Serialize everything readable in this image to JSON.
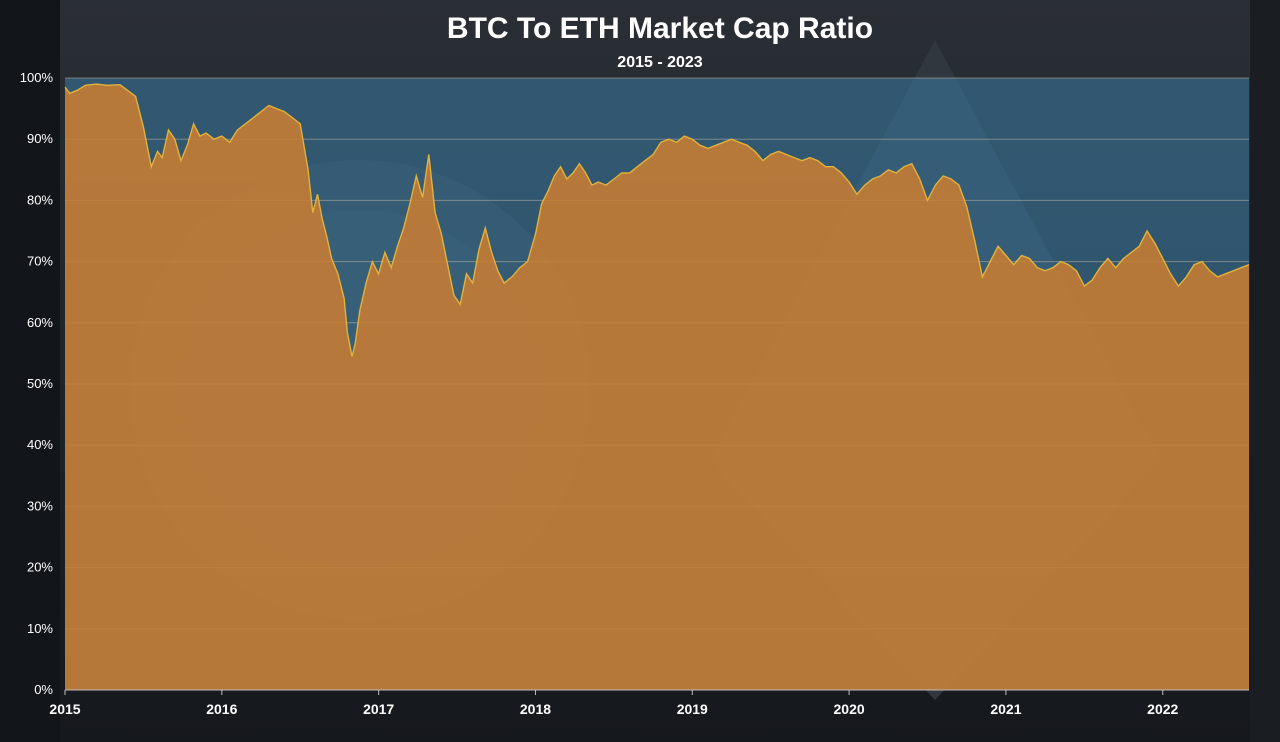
{
  "chart_data": {
    "type": "area",
    "title": "BTC To ETH Market Cap Ratio",
    "subtitle": "2015 - 2023",
    "xlabel": "",
    "ylabel": "",
    "xlim": [
      2015.0,
      2022.55
    ],
    "ylim": [
      0,
      100
    ],
    "y_ticks": [
      "0%",
      "10%",
      "20%",
      "30%",
      "40%",
      "50%",
      "60%",
      "70%",
      "80%",
      "90%",
      "100%"
    ],
    "x_ticks": [
      "2015",
      "2016",
      "2017",
      "2018",
      "2019",
      "2020",
      "2021",
      "2022"
    ],
    "grid": true,
    "legend": "none",
    "colors": {
      "area": "#c87d32",
      "line": "#e2b23c",
      "upper_band": "#3d7ea6",
      "grid": "#d9c6a8",
      "text": "#ffffff"
    },
    "series": [
      {
        "x": [
          2015.0,
          2015.03,
          2015.08,
          2015.13,
          2015.2,
          2015.27,
          2015.35,
          2015.45,
          2015.5,
          2015.55,
          2015.59,
          2015.62,
          2015.66,
          2015.7,
          2015.74,
          2015.78,
          2015.82,
          2015.86,
          2015.9,
          2015.95,
          2016.0,
          2016.05,
          2016.1,
          2016.15,
          2016.2,
          2016.25,
          2016.3,
          2016.35,
          2016.4,
          2016.45,
          2016.5,
          2016.55,
          2016.58,
          2016.61,
          2016.64,
          2016.67,
          2016.7,
          2016.74,
          2016.78,
          2016.8,
          2016.83,
          2016.85,
          2016.88,
          2016.92,
          2016.96,
          2017.0,
          2017.04,
          2017.08,
          2017.12,
          2017.16,
          2017.2,
          2017.24,
          2017.28,
          2017.32,
          2017.36,
          2017.4,
          2017.44,
          2017.48,
          2017.52,
          2017.56,
          2017.6,
          2017.64,
          2017.68,
          2017.72,
          2017.76,
          2017.8,
          2017.85,
          2017.9,
          2017.95,
          2018.0,
          2018.04,
          2018.08,
          2018.12,
          2018.16,
          2018.2,
          2018.24,
          2018.28,
          2018.32,
          2018.36,
          2018.4,
          2018.45,
          2018.5,
          2018.55,
          2018.6,
          2018.65,
          2018.7,
          2018.75,
          2018.8,
          2018.85,
          2018.9,
          2018.95,
          2019.0,
          2019.05,
          2019.1,
          2019.15,
          2019.2,
          2019.25,
          2019.3,
          2019.35,
          2019.4,
          2019.45,
          2019.5,
          2019.55,
          2019.6,
          2019.65,
          2019.7,
          2019.75,
          2019.8,
          2019.85,
          2019.9,
          2019.95,
          2020.0,
          2020.05,
          2020.1,
          2020.15,
          2020.2,
          2020.25,
          2020.3,
          2020.35,
          2020.4,
          2020.45,
          2020.5,
          2020.55,
          2020.6,
          2020.65,
          2020.7,
          2020.75,
          2020.8,
          2020.85,
          2020.9,
          2020.95,
          2021.0,
          2021.05,
          2021.1,
          2021.15,
          2021.2,
          2021.25,
          2021.3,
          2021.35,
          2021.4,
          2021.45,
          2021.5,
          2021.55,
          2021.6,
          2021.65,
          2021.7,
          2021.75,
          2021.8,
          2021.85,
          2021.9,
          2021.95,
          2022.0,
          2022.05,
          2022.1,
          2022.15,
          2022.2,
          2022.25,
          2022.3,
          2022.35,
          2022.4,
          2022.45,
          2022.5,
          2022.55
        ],
        "values": [
          98.5,
          97.5,
          98.0,
          98.8,
          99.0,
          98.8,
          98.9,
          97.0,
          92.0,
          85.5,
          88.0,
          87.0,
          91.5,
          90.0,
          86.5,
          89.0,
          92.5,
          90.5,
          91.0,
          90.0,
          90.5,
          89.5,
          91.5,
          92.5,
          93.5,
          94.5,
          95.5,
          95.0,
          94.5,
          93.5,
          92.5,
          85.0,
          78.0,
          81.0,
          77.0,
          74.0,
          70.5,
          68.0,
          64.0,
          58.5,
          54.5,
          56.5,
          62.0,
          66.5,
          70.0,
          68.0,
          71.5,
          69.0,
          72.5,
          75.5,
          79.5,
          84.0,
          80.5,
          87.5,
          78.0,
          74.5,
          69.5,
          64.5,
          63.0,
          68.0,
          66.5,
          72.0,
          75.5,
          71.5,
          68.5,
          66.5,
          67.5,
          69.0,
          70.0,
          74.5,
          79.5,
          81.5,
          84.0,
          85.5,
          83.5,
          84.5,
          86.0,
          84.5,
          82.5,
          83.0,
          82.5,
          83.5,
          84.5,
          84.5,
          85.5,
          86.5,
          87.5,
          89.5,
          90.0,
          89.5,
          90.5,
          90.0,
          89.0,
          88.5,
          89.0,
          89.5,
          90.0,
          89.5,
          89.0,
          88.0,
          86.5,
          87.5,
          88.0,
          87.5,
          87.0,
          86.5,
          87.0,
          86.5,
          85.5,
          85.5,
          84.5,
          83.0,
          81.0,
          82.5,
          83.5,
          84.0,
          85.0,
          84.5,
          85.5,
          86.0,
          83.5,
          80.0,
          82.5,
          84.0,
          83.5,
          82.5,
          79.0,
          73.5,
          67.5,
          70.0,
          72.5,
          71.0,
          69.5,
          71.0,
          70.5,
          69.0,
          68.5,
          69.0,
          70.0,
          69.5,
          68.5,
          66.0,
          67.0,
          69.0,
          70.5,
          69.0,
          70.5,
          71.5,
          72.5,
          75.0,
          73.0,
          70.5,
          68.0,
          66.0,
          67.5,
          69.5,
          70.0,
          68.5,
          67.5,
          68.0,
          68.5,
          69.0,
          69.5
        ]
      }
    ]
  }
}
